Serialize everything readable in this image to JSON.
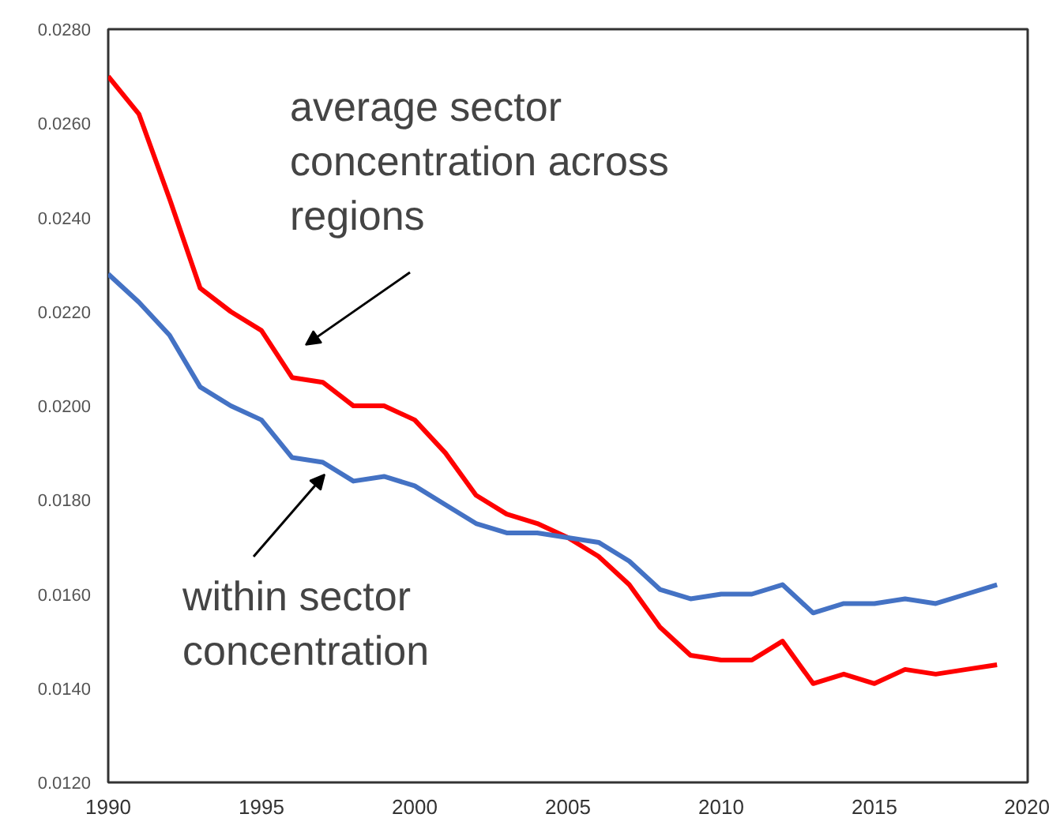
{
  "chart_data": {
    "type": "line",
    "x": [
      1990,
      1991,
      1992,
      1993,
      1994,
      1995,
      1996,
      1997,
      1998,
      1999,
      2000,
      2001,
      2002,
      2003,
      2004,
      2005,
      2006,
      2007,
      2008,
      2009,
      2010,
      2011,
      2012,
      2013,
      2014,
      2015,
      2016,
      2017,
      2018,
      2019
    ],
    "series": [
      {
        "name": "average sector\nconcentration across\nregions",
        "color": "#ff0000",
        "values": [
          0.027,
          0.0262,
          0.0244,
          0.0225,
          0.022,
          0.0216,
          0.0206,
          0.0205,
          0.02,
          0.02,
          0.0197,
          0.019,
          0.0181,
          0.0177,
          0.0175,
          0.0172,
          0.0168,
          0.0162,
          0.0153,
          0.0147,
          0.0146,
          0.0146,
          0.015,
          0.0141,
          0.0143,
          0.0141,
          0.0144,
          0.0143,
          0.0144,
          0.0145
        ]
      },
      {
        "name": "within sector\nconcentration",
        "color": "#4472c4",
        "values": [
          0.0228,
          0.0222,
          0.0215,
          0.0204,
          0.02,
          0.0197,
          0.0189,
          0.0188,
          0.0184,
          0.0185,
          0.0183,
          0.0179,
          0.0175,
          0.0173,
          0.0173,
          0.0172,
          0.0171,
          0.0167,
          0.0161,
          0.0159,
          0.016,
          0.016,
          0.0162,
          0.0156,
          0.0158,
          0.0158,
          0.0159,
          0.0158,
          0.016,
          0.0162
        ]
      }
    ],
    "xlim": [
      1990,
      2020
    ],
    "ylim": [
      0.012,
      0.028
    ],
    "xticks": [
      1990,
      1995,
      2000,
      2005,
      2010,
      2015,
      2020
    ],
    "yticks": [
      {
        "value": 0.012,
        "label": "0.0120"
      },
      {
        "value": 0.014,
        "label": "0.0140"
      },
      {
        "value": 0.016,
        "label": "0.0160"
      },
      {
        "value": 0.018,
        "label": "0.0180"
      },
      {
        "value": 0.02,
        "label": "0.0200"
      },
      {
        "value": 0.022,
        "label": "0.0220"
      },
      {
        "value": 0.024,
        "label": "0.0240"
      },
      {
        "value": 0.026,
        "label": "0.0260"
      },
      {
        "value": 0.028,
        "label": "0.0280"
      }
    ],
    "grid": false,
    "legend": false,
    "line_style": "solid",
    "marker": "none"
  }
}
